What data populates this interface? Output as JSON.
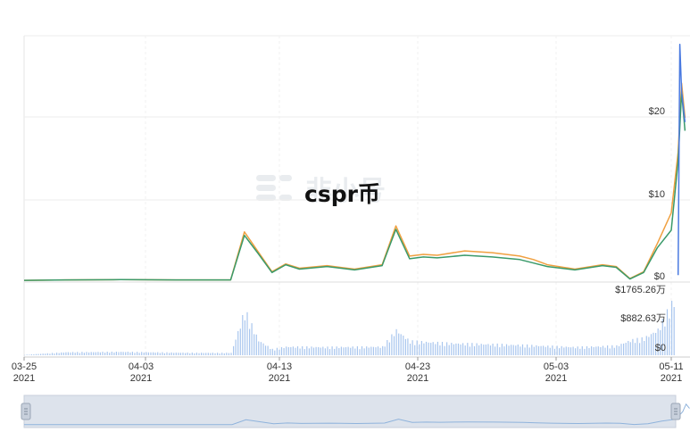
{
  "title": "cspr币",
  "watermark": "非小号",
  "chart_data": {
    "type": "line",
    "x_ticks": [
      {
        "date": "03-25",
        "year": "2021"
      },
      {
        "date": "04-03",
        "year": "2021"
      },
      {
        "date": "04-13",
        "year": "2021"
      },
      {
        "date": "04-23",
        "year": "2021"
      },
      {
        "date": "05-03",
        "year": "2021"
      },
      {
        "date": "05-11",
        "year": "2021"
      }
    ],
    "x_range": [
      "2021-03-25",
      "2021-05-11"
    ],
    "price_axis": {
      "labels": [
        "$0",
        "$10",
        "$20"
      ],
      "ylim": [
        0,
        28.5
      ]
    },
    "volume_axis": {
      "labels": [
        "$0",
        "$882.63万",
        "$1765.26万"
      ],
      "ylim": [
        0,
        1765.26
      ],
      "unit": "万 USD"
    },
    "series": [
      {
        "color": "#f0a040",
        "values": [
          [
            "2021-03-25",
            0.2
          ],
          [
            "2021-03-28",
            0.25
          ],
          [
            "2021-04-01",
            0.28
          ],
          [
            "2021-04-05",
            0.25
          ],
          [
            "2021-04-08",
            0.25
          ],
          [
            "2021-04-09",
            0.25
          ],
          [
            "2021-04-10",
            5.8
          ],
          [
            "2021-04-11",
            3.5
          ],
          [
            "2021-04-12",
            1.2
          ],
          [
            "2021-04-13",
            2.1
          ],
          [
            "2021-04-14",
            1.6
          ],
          [
            "2021-04-16",
            1.9
          ],
          [
            "2021-04-18",
            1.5
          ],
          [
            "2021-04-20",
            2.0
          ],
          [
            "2021-04-21",
            6.5
          ],
          [
            "2021-04-22",
            3.0
          ],
          [
            "2021-04-23",
            3.2
          ],
          [
            "2021-04-24",
            3.1
          ],
          [
            "2021-04-26",
            3.6
          ],
          [
            "2021-04-28",
            3.4
          ],
          [
            "2021-04-30",
            3.0
          ],
          [
            "2021-05-01",
            2.6
          ],
          [
            "2021-05-02",
            2.0
          ],
          [
            "2021-05-04",
            1.5
          ],
          [
            "2021-05-06",
            2.0
          ],
          [
            "2021-05-07",
            1.8
          ],
          [
            "2021-05-08",
            0.4
          ],
          [
            "2021-05-09",
            1.2
          ],
          [
            "2021-05-10",
            4.5
          ],
          [
            "2021-05-11",
            8.0
          ],
          [
            "2021-05-11T12",
            15.0
          ],
          [
            "2021-05-11T18",
            23.0
          ],
          [
            "2021-05-12",
            19.0
          ]
        ]
      },
      {
        "color": "#3a9a6a",
        "values": [
          [
            "2021-03-25",
            0.2
          ],
          [
            "2021-03-28",
            0.25
          ],
          [
            "2021-04-01",
            0.28
          ],
          [
            "2021-04-05",
            0.25
          ],
          [
            "2021-04-08",
            0.25
          ],
          [
            "2021-04-09",
            0.25
          ],
          [
            "2021-04-10",
            5.4
          ],
          [
            "2021-04-11",
            3.3
          ],
          [
            "2021-04-12",
            1.1
          ],
          [
            "2021-04-13",
            2.0
          ],
          [
            "2021-04-14",
            1.5
          ],
          [
            "2021-04-16",
            1.8
          ],
          [
            "2021-04-18",
            1.4
          ],
          [
            "2021-04-20",
            1.9
          ],
          [
            "2021-04-21",
            6.1
          ],
          [
            "2021-04-22",
            2.7
          ],
          [
            "2021-04-23",
            2.9
          ],
          [
            "2021-04-24",
            2.8
          ],
          [
            "2021-04-26",
            3.1
          ],
          [
            "2021-04-28",
            2.9
          ],
          [
            "2021-04-30",
            2.6
          ],
          [
            "2021-05-01",
            2.2
          ],
          [
            "2021-05-02",
            1.8
          ],
          [
            "2021-05-04",
            1.4
          ],
          [
            "2021-05-06",
            1.9
          ],
          [
            "2021-05-07",
            1.7
          ],
          [
            "2021-05-08",
            0.35
          ],
          [
            "2021-05-09",
            1.1
          ],
          [
            "2021-05-10",
            4.0
          ],
          [
            "2021-05-11",
            6.0
          ],
          [
            "2021-05-11T12",
            14.0
          ],
          [
            "2021-05-11T18",
            22.0
          ],
          [
            "2021-05-12",
            17.5
          ]
        ]
      },
      {
        "color": "#4a7ae0",
        "values": [
          [
            "2021-05-11T12",
            0.8
          ],
          [
            "2021-05-11T15",
            27.5
          ],
          [
            "2021-05-11T18",
            22.0
          ],
          [
            "2021-05-12",
            18.5
          ]
        ]
      }
    ],
    "volume": [
      [
        "2021-03-25",
        10
      ],
      [
        "2021-03-28",
        70
      ],
      [
        "2021-04-01",
        80
      ],
      [
        "2021-04-05",
        60
      ],
      [
        "2021-04-08",
        55
      ],
      [
        "2021-04-09",
        55
      ],
      [
        "2021-04-10",
        1050
      ],
      [
        "2021-04-11",
        350
      ],
      [
        "2021-04-12",
        140
      ],
      [
        "2021-04-13",
        200
      ],
      [
        "2021-04-16",
        190
      ],
      [
        "2021-04-20",
        200
      ],
      [
        "2021-04-21",
        590
      ],
      [
        "2021-04-22",
        330
      ],
      [
        "2021-04-25",
        280
      ],
      [
        "2021-04-30",
        240
      ],
      [
        "2021-05-04",
        190
      ],
      [
        "2021-05-07",
        220
      ],
      [
        "2021-05-08",
        350
      ],
      [
        "2021-05-09",
        400
      ],
      [
        "2021-05-10",
        600
      ],
      [
        "2021-05-11",
        1200
      ],
      [
        "2021-05-12",
        1765
      ]
    ],
    "grid": true
  },
  "navigator": {
    "label": "range-navigator"
  }
}
